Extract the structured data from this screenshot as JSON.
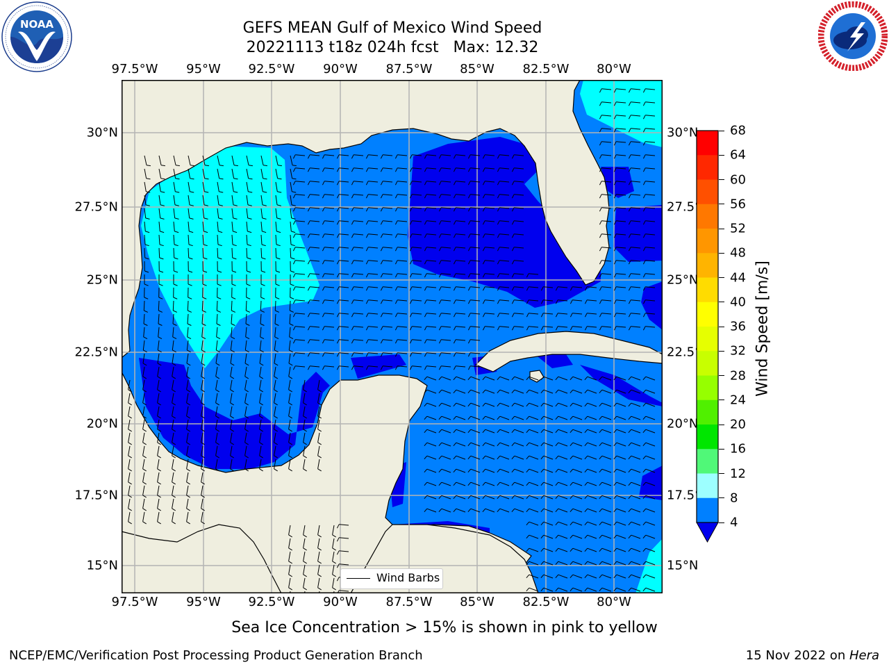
{
  "header": {
    "title_line1": "GEFS MEAN Gulf of Mexico Wind Speed",
    "title_line2": "20221113 t18z 024h fcst   Max: 12.32"
  },
  "logos": {
    "noaa": {
      "text": "NOAA",
      "ring_text": "NATIONAL OCEANIC AND ATMOSPHERIC ADMINISTRATION · U.S. DEPARTMENT OF COMMERCE"
    },
    "nws": {
      "ring_text": "NATIONAL WEATHER SERVICE"
    }
  },
  "map": {
    "lon_labels": [
      "97.5°W",
      "95°W",
      "92.5°W",
      "90°W",
      "87.5°W",
      "85°W",
      "82.5°W",
      "80°W"
    ],
    "lat_labels_left": [
      "30°N",
      "27.5°N",
      "25°N",
      "22.5°N",
      "20°N",
      "17.5°N",
      "15°N"
    ],
    "lat_labels_right": [
      "30°N",
      "27.5°",
      "25°N",
      "22.5°",
      "20°N",
      "17.5°",
      "15°N"
    ],
    "extent": {
      "lon_min": -98,
      "lon_max": -78.25,
      "lat_min": 14,
      "lat_max": 31.8
    },
    "colors": {
      "land": "#efeedf",
      "ocean_4_8": "#0080ff",
      "ocean_lt4": "#0000ee",
      "ocean_8_12": "#00ffff",
      "grid": "#b4b4b4"
    },
    "legend_label": "Wind Barbs",
    "max_wind": 12.32
  },
  "colorbar": {
    "label": "Wind Speed [m/s]",
    "ticks": [
      "68",
      "64",
      "60",
      "56",
      "52",
      "48",
      "44",
      "40",
      "36",
      "32",
      "28",
      "24",
      "20",
      "16",
      "12",
      "8",
      "4"
    ],
    "colors": [
      "#ff0000",
      "#ff2800",
      "#ff5000",
      "#ff7800",
      "#ff9600",
      "#ffb400",
      "#ffdc00",
      "#ffff00",
      "#e6ff00",
      "#c8ff00",
      "#96ff00",
      "#50f000",
      "#00e600",
      "#50f878",
      "#9dffff",
      "#50ffff",
      "#00ffff",
      "#0080ff"
    ],
    "extend_color": "#0000ee"
  },
  "note": "Sea Ice Concentration > 15% is shown in pink to yellow",
  "footer": {
    "left": "NCEP/EMC/Verification Post Processing Product Generation Branch",
    "date": "15 Nov 2022 on ",
    "host": "Hera"
  }
}
